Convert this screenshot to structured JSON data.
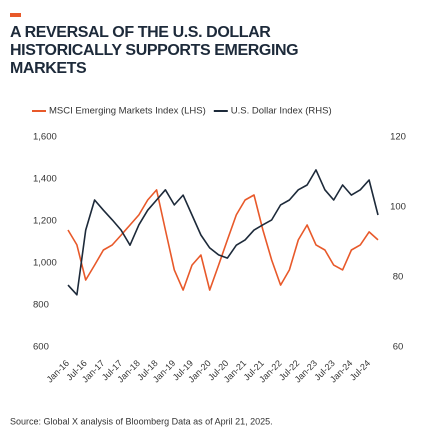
{
  "chart_data": {
    "type": "line",
    "title": "A REVERSAL OF THE U.S. DOLLAR HISTORICALLY SUPPORTS EMERGING MARKETS",
    "source": "Source: Global X analysis of Bloomberg Data as of April 21, 2025.",
    "categories": [
      "Jan-16",
      null,
      "Jul-16",
      null,
      "Jan-17",
      null,
      "Jul-17",
      null,
      "Jan-18",
      null,
      "Jul-18",
      null,
      "Jan-19",
      null,
      "Jul-19",
      null,
      "Jan-20",
      null,
      "Jul-20",
      null,
      "Jan-21",
      null,
      "Jul-21",
      null,
      "Jan-22",
      null,
      "Jul-22",
      null,
      "Jan-23",
      null,
      "Jul-23",
      null,
      "Jan-24",
      null,
      "Jul-24",
      null
    ],
    "series": [
      {
        "name": "MSCI Emerging Markets Index (LHS)",
        "color": "#e8592a",
        "axis": "y",
        "values": [
          1157,
          1086,
          919,
          990,
          1062,
          1086,
          1133,
          1181,
          1229,
          1300,
          1348,
          1157,
          967,
          871,
          990,
          1038,
          871,
          990,
          1110,
          1229,
          1300,
          1324,
          1157,
          1014,
          895,
          967,
          1110,
          1181,
          1086,
          1062,
          990,
          967,
          1062,
          1086,
          1148,
          1110
        ]
      },
      {
        "name": "U.S. Dollar Index (RHS)",
        "color": "#1d2a3a",
        "axis": "y2",
        "values": [
          77.7,
          74.9,
          93.4,
          102.0,
          99.1,
          96.3,
          93.4,
          89.1,
          94.9,
          99.1,
          102.0,
          104.9,
          100.6,
          103.4,
          97.7,
          92.0,
          88.3,
          86.3,
          85.4,
          89.1,
          90.6,
          93.4,
          94.9,
          96.3,
          100.6,
          102.0,
          104.9,
          106.3,
          110.6,
          104.9,
          102.0,
          106.3,
          103.4,
          104.9,
          107.7,
          97.7
        ]
      }
    ],
    "ylim": [
      600,
      1600
    ],
    "yticks": [
      600,
      800,
      {
        "value": 1000,
        "label": "1,000"
      },
      {
        "value": 1200,
        "label": "1,200"
      },
      {
        "value": 1400,
        "label": "1,400"
      },
      {
        "value": 1600,
        "label": "1,600"
      }
    ],
    "y2lim": [
      60,
      120
    ],
    "y2ticks": [
      60,
      80,
      100,
      120
    ],
    "grid": false
  }
}
